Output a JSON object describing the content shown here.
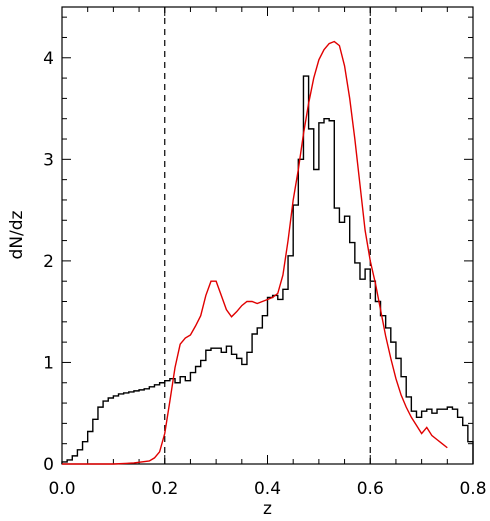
{
  "chart_data": {
    "type": "line",
    "xlabel": "z",
    "ylabel": "dN/dz",
    "xlim": [
      0.0,
      0.8
    ],
    "ylim": [
      0.0,
      4.5
    ],
    "grid": false,
    "legend": "none",
    "xticks": [
      0.0,
      0.2,
      0.4,
      0.6,
      0.8
    ],
    "xtick_labels": [
      "0.0",
      "0.2",
      "0.4",
      "0.6",
      "0.8"
    ],
    "yticks": [
      0,
      1,
      2,
      3,
      4
    ],
    "ytick_labels": [
      "0",
      "1",
      "2",
      "3",
      "4"
    ],
    "vertical_dashed_lines": [
      0.2,
      0.6
    ],
    "series": [
      {
        "kind": "histogram-step",
        "color": "#000000",
        "bin_width": 0.01,
        "bin_left_edges": [
          0.0,
          0.01,
          0.02,
          0.03,
          0.04,
          0.05,
          0.06,
          0.07,
          0.08,
          0.09,
          0.1,
          0.11,
          0.12,
          0.13,
          0.14,
          0.15,
          0.16,
          0.17,
          0.18,
          0.19,
          0.2,
          0.21,
          0.22,
          0.23,
          0.24,
          0.25,
          0.26,
          0.27,
          0.28,
          0.29,
          0.3,
          0.31,
          0.32,
          0.33,
          0.34,
          0.35,
          0.36,
          0.37,
          0.38,
          0.39,
          0.4,
          0.41,
          0.42,
          0.43,
          0.44,
          0.45,
          0.46,
          0.47,
          0.48,
          0.49,
          0.5,
          0.51,
          0.52,
          0.53,
          0.54,
          0.55,
          0.56,
          0.57,
          0.58,
          0.59,
          0.6,
          0.61,
          0.62,
          0.63,
          0.64,
          0.65,
          0.66,
          0.67,
          0.68,
          0.69,
          0.7,
          0.71,
          0.72,
          0.73,
          0.74,
          0.75,
          0.76,
          0.77,
          0.78,
          0.79
        ],
        "values": [
          0.02,
          0.04,
          0.08,
          0.14,
          0.22,
          0.32,
          0.44,
          0.56,
          0.62,
          0.65,
          0.67,
          0.69,
          0.7,
          0.71,
          0.72,
          0.73,
          0.74,
          0.76,
          0.78,
          0.8,
          0.82,
          0.84,
          0.8,
          0.86,
          0.82,
          0.9,
          0.96,
          1.02,
          1.12,
          1.14,
          1.14,
          1.1,
          1.16,
          1.08,
          1.04,
          0.98,
          1.1,
          1.28,
          1.34,
          1.46,
          1.64,
          1.66,
          1.62,
          1.72,
          2.05,
          2.55,
          3.0,
          3.82,
          3.3,
          2.9,
          3.36,
          3.4,
          3.38,
          2.52,
          2.38,
          2.44,
          2.18,
          1.98,
          1.82,
          1.92,
          1.8,
          1.6,
          1.46,
          1.34,
          1.2,
          1.04,
          0.86,
          0.66,
          0.52,
          0.46,
          0.52,
          0.54,
          0.5,
          0.54,
          0.54,
          0.56,
          0.54,
          0.46,
          0.38,
          0.22
        ]
      },
      {
        "kind": "curve",
        "color": "#e00000",
        "x": [
          0.0,
          0.05,
          0.1,
          0.14,
          0.17,
          0.18,
          0.19,
          0.2,
          0.21,
          0.22,
          0.23,
          0.24,
          0.25,
          0.26,
          0.27,
          0.28,
          0.29,
          0.3,
          0.31,
          0.32,
          0.33,
          0.34,
          0.35,
          0.36,
          0.37,
          0.38,
          0.39,
          0.4,
          0.41,
          0.42,
          0.43,
          0.44,
          0.45,
          0.46,
          0.47,
          0.48,
          0.49,
          0.5,
          0.51,
          0.52,
          0.53,
          0.54,
          0.55,
          0.56,
          0.57,
          0.58,
          0.59,
          0.6,
          0.61,
          0.62,
          0.63,
          0.64,
          0.65,
          0.66,
          0.67,
          0.68,
          0.69,
          0.7,
          0.71,
          0.72,
          0.73,
          0.74,
          0.75
        ],
        "y": [
          0.0,
          0.0,
          0.0,
          0.01,
          0.03,
          0.06,
          0.12,
          0.3,
          0.62,
          0.95,
          1.18,
          1.24,
          1.27,
          1.36,
          1.46,
          1.66,
          1.8,
          1.8,
          1.66,
          1.52,
          1.45,
          1.5,
          1.56,
          1.6,
          1.6,
          1.58,
          1.6,
          1.62,
          1.64,
          1.68,
          1.86,
          2.2,
          2.6,
          2.9,
          3.25,
          3.55,
          3.8,
          3.98,
          4.08,
          4.14,
          4.16,
          4.12,
          3.92,
          3.6,
          3.2,
          2.75,
          2.3,
          2.0,
          1.78,
          1.52,
          1.26,
          1.04,
          0.84,
          0.68,
          0.56,
          0.46,
          0.38,
          0.3,
          0.36,
          0.28,
          0.24,
          0.2,
          0.16
        ]
      }
    ]
  }
}
